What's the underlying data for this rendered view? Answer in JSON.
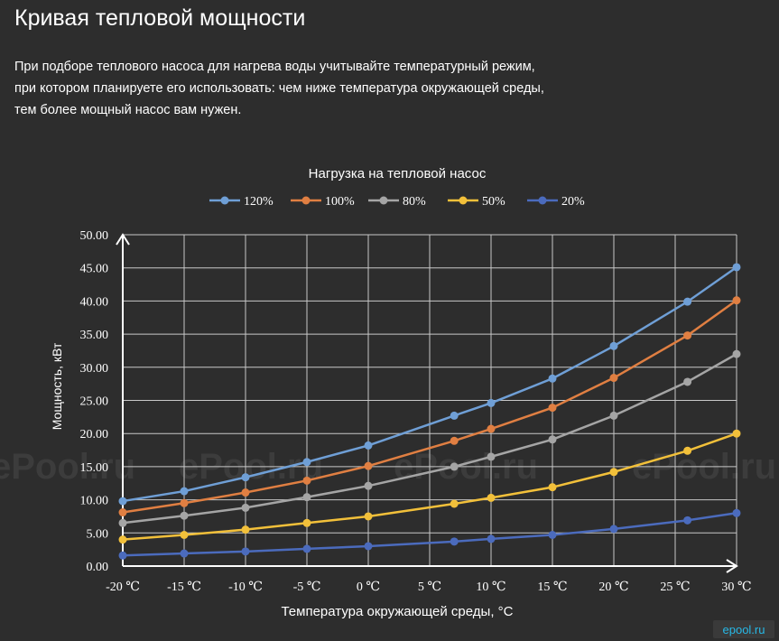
{
  "page": {
    "title": "Кривая тепловой мощности",
    "intro_lines": [
      "При подборе теплового насоса для нагрева воды учитывайте температурный режим,",
      "при котором планируете его использовать: чем ниже температура окружающей среды,",
      "тем более мощный насос вам нужен."
    ]
  },
  "watermark": {
    "text": "ePool.ru",
    "badge": "epool.ru"
  },
  "chart_data": {
    "type": "line",
    "title": "Нагрузка на тепловой насос",
    "xlabel": "Температура окружающей среды, °C",
    "ylabel": "Мощность, кВт",
    "x_ticks": [
      "-20 ℃",
      "-15 ℃",
      "-10 ℃",
      "-5 ℃",
      "0 ℃",
      "5 ℃",
      "10 ℃",
      "15 ℃",
      "20 ℃",
      "25 ℃",
      "30 ℃"
    ],
    "y_ticks": [
      "0.00",
      "5.00",
      "10.00",
      "15.00",
      "20.00",
      "25.00",
      "30.00",
      "35.00",
      "40.00",
      "45.00",
      "50.00"
    ],
    "xlim": [
      -20,
      30
    ],
    "ylim": [
      0,
      50
    ],
    "grid": true,
    "legend_position": "top",
    "series": [
      {
        "name": "120%",
        "color": "#6f9fd6",
        "x": [
          -20,
          -15,
          -10,
          -5,
          0,
          7,
          10,
          15,
          20,
          26,
          30
        ],
        "y": [
          9.8,
          11.3,
          13.4,
          15.7,
          18.2,
          22.7,
          24.6,
          28.3,
          33.2,
          39.9,
          45.1
        ]
      },
      {
        "name": "100%",
        "color": "#e07f42",
        "x": [
          -20,
          -15,
          -10,
          -5,
          0,
          7,
          10,
          15,
          20,
          26,
          30
        ],
        "y": [
          8.1,
          9.5,
          11.1,
          12.9,
          15.1,
          18.9,
          20.7,
          23.9,
          28.4,
          34.8,
          40.1
        ]
      },
      {
        "name": "80%",
        "color": "#a5a5a5",
        "x": [
          -20,
          -15,
          -10,
          -5,
          0,
          7,
          10,
          15,
          20,
          26,
          30
        ],
        "y": [
          6.5,
          7.6,
          8.8,
          10.4,
          12.1,
          15.0,
          16.5,
          19.1,
          22.7,
          27.8,
          32.0
        ]
      },
      {
        "name": "50%",
        "color": "#f2c03a",
        "x": [
          -20,
          -15,
          -10,
          -5,
          0,
          7,
          10,
          15,
          20,
          26,
          30
        ],
        "y": [
          4.0,
          4.7,
          5.5,
          6.5,
          7.5,
          9.4,
          10.3,
          11.9,
          14.2,
          17.4,
          20.0
        ]
      },
      {
        "name": "20%",
        "color": "#4b6bbd",
        "x": [
          -20,
          -15,
          -10,
          -5,
          0,
          7,
          10,
          15,
          20,
          26,
          30
        ],
        "y": [
          1.6,
          1.9,
          2.2,
          2.6,
          3.0,
          3.7,
          4.1,
          4.7,
          5.6,
          6.9,
          8.0
        ]
      }
    ]
  }
}
